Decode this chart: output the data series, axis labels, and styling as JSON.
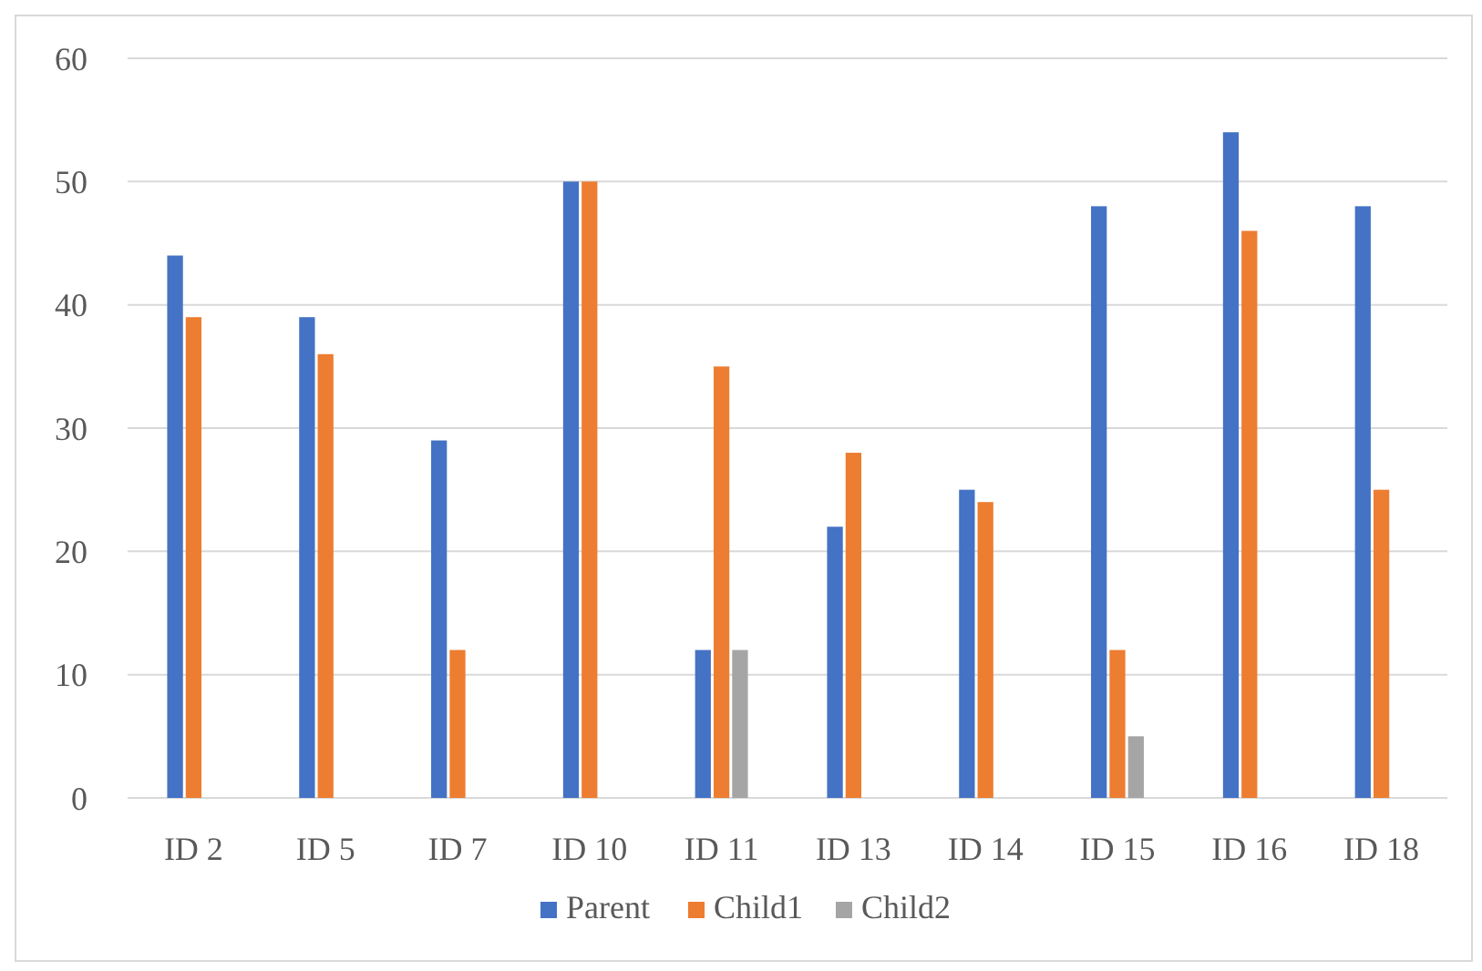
{
  "chart_data": {
    "type": "bar",
    "categories": [
      "ID 2",
      "ID 5",
      "ID 7",
      "ID 10",
      "ID 11",
      "ID 13",
      "ID 14",
      "ID 15",
      "ID 16",
      "ID 18"
    ],
    "series": [
      {
        "name": "Parent",
        "color": "#4472c4",
        "values": [
          44,
          39,
          29,
          50,
          12,
          22,
          25,
          48,
          54,
          48
        ]
      },
      {
        "name": "Child1",
        "color": "#ed7d31",
        "values": [
          39,
          36,
          12,
          50,
          35,
          28,
          24,
          12,
          46,
          25
        ]
      },
      {
        "name": "Child2",
        "color": "#a5a5a5",
        "values": [
          null,
          null,
          null,
          null,
          12,
          null,
          null,
          5,
          null,
          null
        ]
      }
    ],
    "ylim": [
      0,
      60
    ],
    "yticks": [
      0,
      10,
      20,
      30,
      40,
      50,
      60
    ],
    "grid": "y",
    "legend": "bottom"
  }
}
